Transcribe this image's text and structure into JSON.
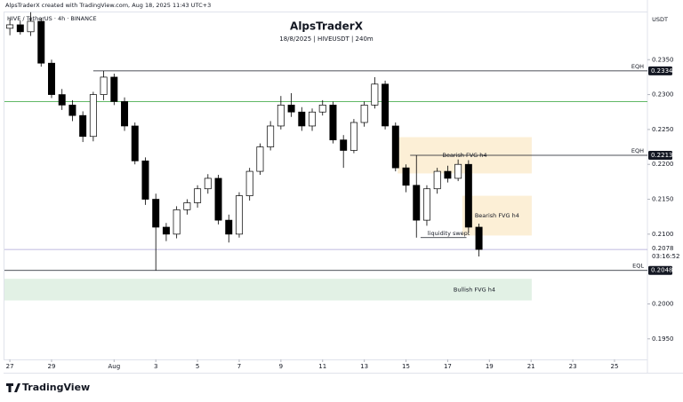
{
  "header": {
    "watermark": "AlpsTraderX created with TradingView.com, Aug 18, 2025 11:43 UTC+3",
    "symbol": "HIVE / TetherUS · 4h · BINANCE",
    "brand": "TradingView"
  },
  "chart_data": {
    "type": "candlestick",
    "title": "AlpsTraderX",
    "subtitle": "18/8/2025 | HIVEUSDT | 240m",
    "y_unit": "USDT",
    "countdown": "03:16:52",
    "x": [
      0,
      0.5,
      1,
      1.5,
      2,
      2.5,
      3,
      3.5,
      4,
      4.5,
      5,
      5.5,
      6,
      6.5,
      7,
      7.5,
      8,
      8.5,
      9,
      9.5,
      10,
      10.5,
      11,
      11.5,
      12,
      12.5,
      13,
      13.5,
      14,
      14.5,
      15,
      15.5,
      16,
      16.5,
      17,
      17.5,
      18,
      18.5,
      19,
      19.5,
      20,
      20.5,
      21,
      21.5,
      22,
      22.5
    ],
    "open": [
      0.2395,
      0.24,
      0.239,
      0.2405,
      0.2345,
      0.23,
      0.2285,
      0.227,
      0.224,
      0.23,
      0.2325,
      0.229,
      0.2255,
      0.2205,
      0.215,
      0.211,
      0.21,
      0.2135,
      0.2145,
      0.2165,
      0.218,
      0.212,
      0.21,
      0.2155,
      0.219,
      0.2225,
      0.2255,
      0.2285,
      0.2275,
      0.2255,
      0.2275,
      0.2285,
      0.2235,
      0.222,
      0.226,
      0.2285,
      0.2315,
      0.2255,
      0.2195,
      0.217,
      0.212,
      0.2165,
      0.219,
      0.218,
      0.22,
      0.211
    ],
    "high": [
      0.2408,
      0.2406,
      0.2418,
      0.241,
      0.235,
      0.2308,
      0.2292,
      0.2276,
      0.2304,
      0.2334,
      0.233,
      0.2296,
      0.226,
      0.221,
      0.2158,
      0.2116,
      0.214,
      0.215,
      0.217,
      0.2186,
      0.2185,
      0.2128,
      0.216,
      0.2195,
      0.223,
      0.2262,
      0.2298,
      0.2302,
      0.2282,
      0.228,
      0.2292,
      0.229,
      0.2242,
      0.2265,
      0.229,
      0.2325,
      0.232,
      0.226,
      0.22,
      0.2213,
      0.217,
      0.2195,
      0.2198,
      0.2207,
      0.2206,
      0.2115
    ],
    "low": [
      0.2385,
      0.2386,
      0.2384,
      0.234,
      0.2295,
      0.2278,
      0.2262,
      0.2232,
      0.2233,
      0.2292,
      0.2285,
      0.2248,
      0.22,
      0.2142,
      0.2048,
      0.209,
      0.2094,
      0.2128,
      0.2138,
      0.2158,
      0.2114,
      0.2088,
      0.2095,
      0.2148,
      0.2185,
      0.222,
      0.225,
      0.2268,
      0.2248,
      0.2248,
      0.227,
      0.223,
      0.2195,
      0.2216,
      0.2254,
      0.228,
      0.225,
      0.219,
      0.216,
      0.2095,
      0.2112,
      0.2158,
      0.2174,
      0.2176,
      0.2104,
      0.2068
    ],
    "close": [
      0.24,
      0.239,
      0.2405,
      0.2345,
      0.23,
      0.2285,
      0.227,
      0.224,
      0.23,
      0.2325,
      0.229,
      0.2255,
      0.2205,
      0.215,
      0.211,
      0.21,
      0.2135,
      0.2145,
      0.2165,
      0.218,
      0.212,
      0.21,
      0.2155,
      0.219,
      0.2225,
      0.2255,
      0.2285,
      0.2275,
      0.2255,
      0.2275,
      0.2285,
      0.2235,
      0.222,
      0.226,
      0.2285,
      0.2315,
      0.2255,
      0.2195,
      0.217,
      0.212,
      0.2165,
      0.219,
      0.218,
      0.22,
      0.211,
      0.2078
    ],
    "up_color": "#ffffff",
    "down_color": "#000000",
    "xlim": [
      -0.26,
      30.58
    ],
    "ylim": [
      0.19205,
      0.2419
    ],
    "xticks": [
      {
        "value": 0,
        "label": "27"
      },
      {
        "value": 2,
        "label": "29"
      },
      {
        "value": 5,
        "label": "Aug"
      },
      {
        "value": 7,
        "label": "3"
      },
      {
        "value": 9,
        "label": "5"
      },
      {
        "value": 11,
        "label": "7"
      },
      {
        "value": 13,
        "label": "9"
      },
      {
        "value": 15,
        "label": "11"
      },
      {
        "value": 17,
        "label": "13"
      },
      {
        "value": 19,
        "label": "15"
      },
      {
        "value": 21,
        "label": "17"
      },
      {
        "value": 23,
        "label": "19"
      },
      {
        "value": 25,
        "label": "21"
      },
      {
        "value": 27,
        "label": "23"
      },
      {
        "value": 29,
        "label": "25"
      }
    ],
    "yticks": [
      {
        "value": 0.195,
        "label": "0.1950"
      },
      {
        "value": 0.2,
        "label": "0.2000"
      },
      {
        "value": 0.21,
        "label": "0.2100"
      },
      {
        "value": 0.215,
        "label": "0.2150"
      },
      {
        "value": 0.22,
        "label": "0.2200"
      },
      {
        "value": 0.225,
        "label": "0.2250"
      },
      {
        "value": 0.23,
        "label": "0.2300"
      },
      {
        "value": 0.235,
        "label": "0.2350"
      }
    ],
    "levels": [
      {
        "label": "EQH",
        "value": 0.2334,
        "from": 4.0
      },
      {
        "label": "EQH",
        "value": 0.2213,
        "from": 19.2
      },
      {
        "label": "EQL",
        "value": 0.2048,
        "from": -0.26
      }
    ],
    "reference_line": {
      "value": 0.229,
      "color": "#4caf50"
    },
    "last_price": {
      "value": 0.2078,
      "color": "#a9a3d6"
    },
    "zones": [
      {
        "label": "Bearish FVG h4",
        "top": 0.2239,
        "bottom": 0.2187,
        "from": 18.6,
        "to": 25.03,
        "color": "#fcefd6"
      },
      {
        "label": "Bearish FVG h4",
        "top": 0.2155,
        "bottom": 0.2098,
        "from": 21.7,
        "to": 25.03,
        "color": "#fcefd6"
      },
      {
        "label": "Bullish FVG h4",
        "top": 0.2036,
        "bottom": 0.2005,
        "from": -0.26,
        "to": 25.03,
        "color": "#e2f1e5"
      }
    ],
    "note": {
      "label": "liquidity swept",
      "value": 0.2095,
      "from": 19.7,
      "to": 21.9
    }
  }
}
